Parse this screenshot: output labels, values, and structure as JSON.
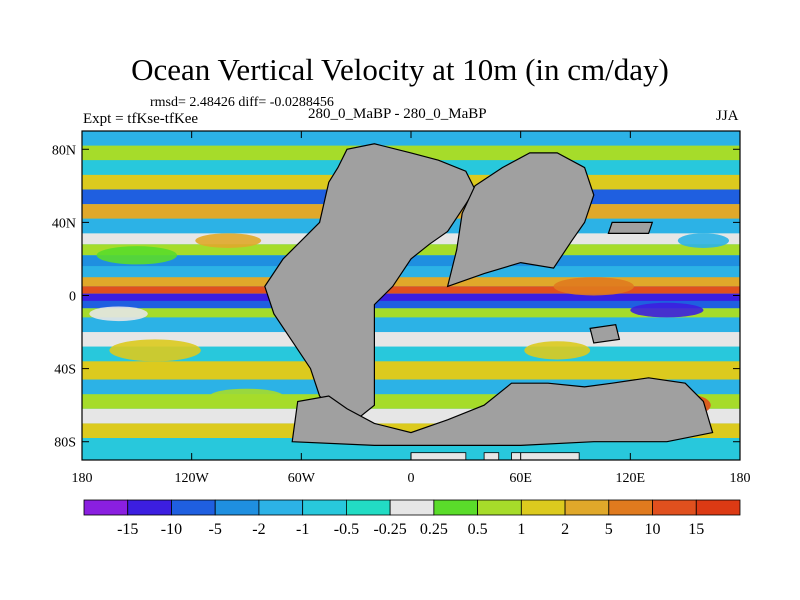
{
  "chart_data": {
    "type": "heatmap",
    "title": "Ocean Vertical Velocity at 10m (in cm/day)",
    "stats_line": "rmsd= 2.48426 diff= -0.0288456",
    "left_label": "Expt = tfKse-tfKee",
    "center_label": "280_0_MaBP - 280_0_MaBP",
    "right_label": "JJA",
    "x_range": [
      -180,
      180
    ],
    "y_range": [
      -90,
      90
    ],
    "x_ticks": [
      {
        "value": -180,
        "label": "180"
      },
      {
        "value": -120,
        "label": "120W"
      },
      {
        "value": -60,
        "label": "60W"
      },
      {
        "value": 0,
        "label": "0"
      },
      {
        "value": 60,
        "label": "60E"
      },
      {
        "value": 120,
        "label": "120E"
      },
      {
        "value": 180,
        "label": "180"
      }
    ],
    "y_ticks": [
      {
        "value": 80,
        "label": "80N"
      },
      {
        "value": 40,
        "label": "40N"
      },
      {
        "value": 0,
        "label": "0"
      },
      {
        "value": -40,
        "label": "40S"
      },
      {
        "value": -80,
        "label": "80S"
      }
    ],
    "colorbar": {
      "labels": [
        "-15",
        "-10",
        "-5",
        "-2",
        "-1",
        "-0.5",
        "-0.25",
        "0.25",
        "0.5",
        "1",
        "2",
        "5",
        "10",
        "15"
      ],
      "colors": [
        "#8a1fe0",
        "#3c1ee0",
        "#1f5fe0",
        "#1f8fe0",
        "#2cb2e6",
        "#28c8dc",
        "#22dcc4",
        "#e6e6e6",
        "#5adc2a",
        "#a6dc2a",
        "#dcca1e",
        "#e0a82a",
        "#e07a1e",
        "#e0501e",
        "#dc3a14"
      ]
    },
    "land_color": "#a0a0a0",
    "ice_shelf_color": "#e6e6e6"
  }
}
